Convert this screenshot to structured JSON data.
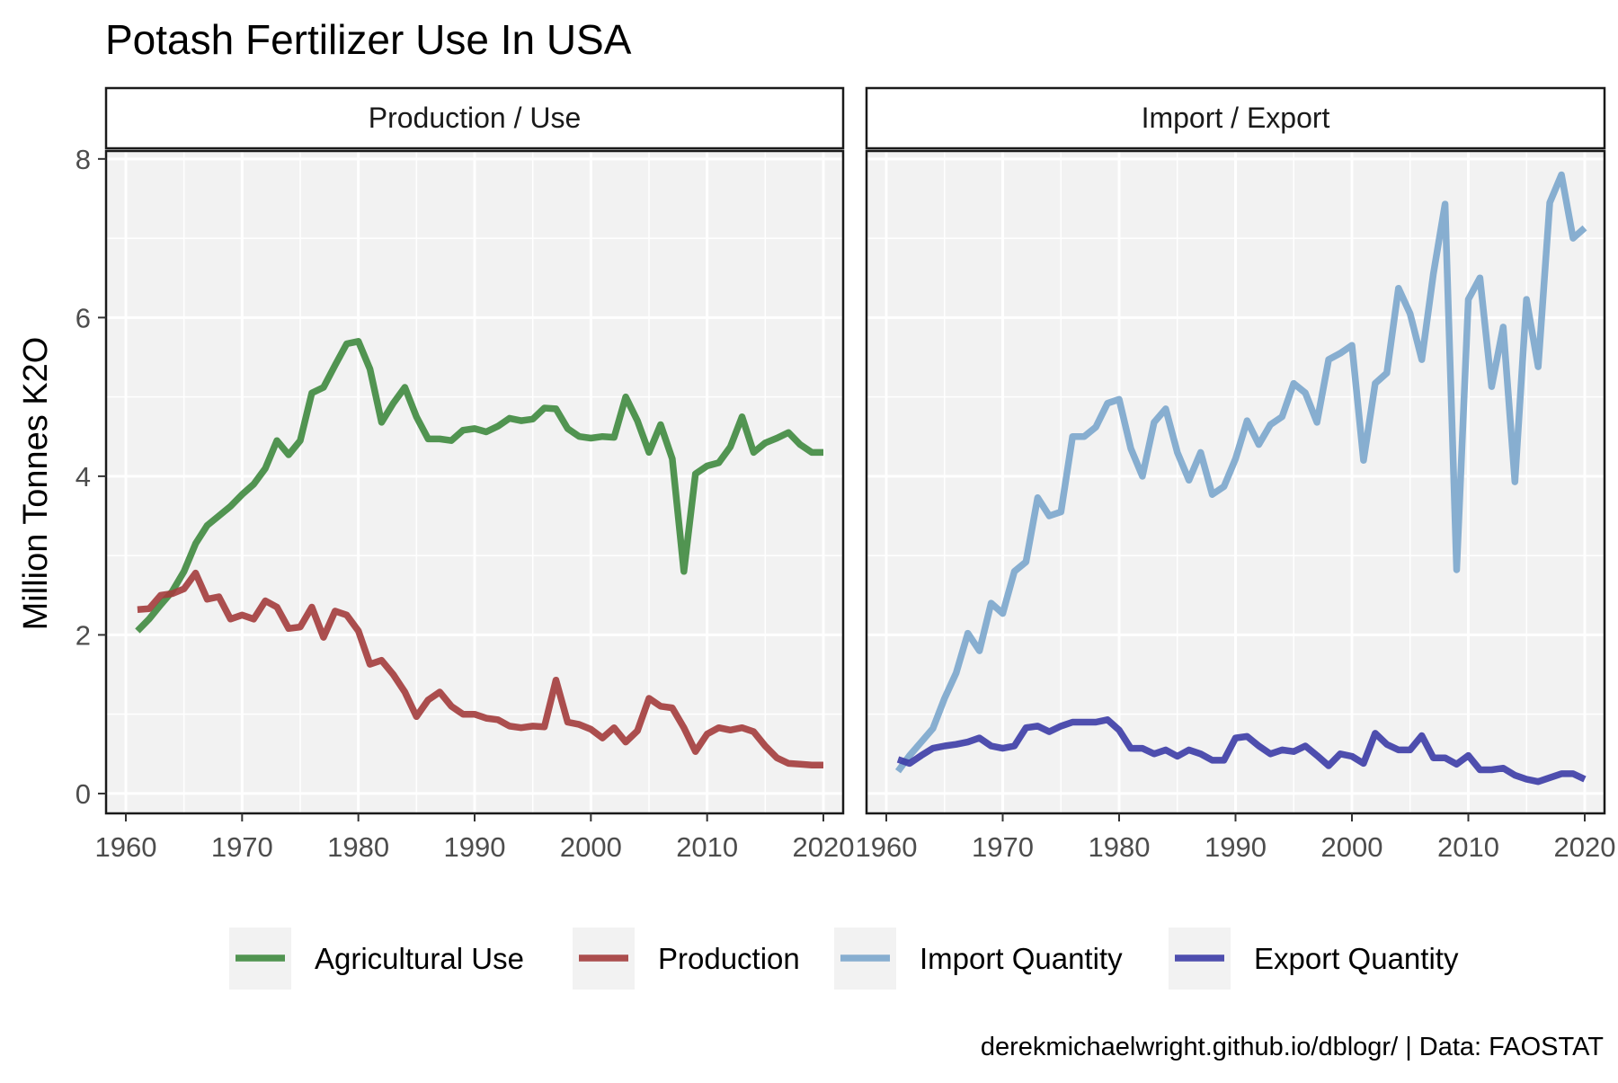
{
  "chart_data": {
    "type": "line",
    "title": "Potash Fertilizer Use In USA",
    "ylabel": "Million Tonnes K2O",
    "xlabel": "",
    "xlim": [
      1958.3,
      2021.7
    ],
    "ylim": [
      -0.25,
      8.1
    ],
    "x_ticks": [
      1960,
      1970,
      1980,
      1990,
      2000,
      2010,
      2020
    ],
    "x_tick_labels": [
      "1960",
      "1970",
      "1980",
      "1990",
      "2000",
      "2010",
      "2020"
    ],
    "y_ticks": [
      0,
      2,
      4,
      6,
      8
    ],
    "y_tick_labels": [
      "0",
      "2",
      "4",
      "6",
      "8"
    ],
    "grid": true,
    "legend_position": "bottom",
    "caption": "derekmichaelwright.github.io/dblogr/ | Data: FAOSTAT",
    "facets": [
      {
        "label": "Production / Use",
        "series": [
          {
            "name": "Agricultural Use",
            "color": "#3f8a3f",
            "x": [
              1961,
              1962,
              1963,
              1964,
              1965,
              1966,
              1967,
              1968,
              1969,
              1970,
              1971,
              1972,
              1973,
              1974,
              1975,
              1976,
              1977,
              1978,
              1979,
              1980,
              1981,
              1982,
              1983,
              1984,
              1985,
              1986,
              1987,
              1988,
              1989,
              1990,
              1991,
              1992,
              1993,
              1994,
              1995,
              1996,
              1997,
              1998,
              1999,
              2000,
              2001,
              2002,
              2003,
              2004,
              2005,
              2006,
              2007,
              2008,
              2009,
              2010,
              2011,
              2012,
              2013,
              2014,
              2015,
              2016,
              2017,
              2018,
              2019,
              2020
            ],
            "y": [
              2.05,
              2.2,
              2.38,
              2.55,
              2.8,
              3.15,
              3.38,
              3.5,
              3.62,
              3.77,
              3.9,
              4.1,
              4.45,
              4.27,
              4.45,
              5.05,
              5.12,
              5.4,
              5.67,
              5.7,
              5.35,
              4.68,
              4.92,
              5.12,
              4.75,
              4.47,
              4.47,
              4.45,
              4.58,
              4.6,
              4.56,
              4.63,
              4.73,
              4.7,
              4.72,
              4.86,
              4.85,
              4.6,
              4.5,
              4.48,
              4.5,
              4.49,
              5.0,
              4.7,
              4.3,
              4.65,
              4.22,
              2.8,
              4.03,
              4.13,
              4.17,
              4.37,
              4.75,
              4.3,
              4.42,
              4.48,
              4.55,
              4.4,
              4.3,
              4.3
            ]
          },
          {
            "name": "Production",
            "color": "#a33c3c",
            "x": [
              1961,
              1962,
              1963,
              1964,
              1965,
              1966,
              1967,
              1968,
              1969,
              1970,
              1971,
              1972,
              1973,
              1974,
              1975,
              1976,
              1977,
              1978,
              1979,
              1980,
              1981,
              1982,
              1983,
              1984,
              1985,
              1986,
              1987,
              1988,
              1989,
              1990,
              1991,
              1992,
              1993,
              1994,
              1995,
              1996,
              1997,
              1998,
              1999,
              2000,
              2001,
              2002,
              2003,
              2004,
              2005,
              2006,
              2007,
              2008,
              2009,
              2010,
              2011,
              2012,
              2013,
              2014,
              2015,
              2016,
              2017,
              2018,
              2019,
              2020
            ],
            "y": [
              2.32,
              2.33,
              2.5,
              2.52,
              2.58,
              2.78,
              2.45,
              2.48,
              2.2,
              2.25,
              2.2,
              2.43,
              2.35,
              2.08,
              2.1,
              2.35,
              1.97,
              2.3,
              2.25,
              2.05,
              1.63,
              1.68,
              1.5,
              1.28,
              0.97,
              1.18,
              1.28,
              1.1,
              1.0,
              1.0,
              0.95,
              0.93,
              0.85,
              0.83,
              0.85,
              0.84,
              1.43,
              0.9,
              0.87,
              0.81,
              0.7,
              0.83,
              0.65,
              0.79,
              1.2,
              1.1,
              1.08,
              0.83,
              0.53,
              0.75,
              0.83,
              0.8,
              0.83,
              0.78,
              0.6,
              0.45,
              0.38,
              0.37,
              0.36,
              0.36
            ]
          }
        ]
      },
      {
        "label": "Import / Export",
        "series": [
          {
            "name": "Import Quantity",
            "color": "#7ba6cc",
            "x": [
              1961,
              1962,
              1963,
              1964,
              1965,
              1966,
              1967,
              1968,
              1969,
              1970,
              1971,
              1972,
              1973,
              1974,
              1975,
              1976,
              1977,
              1978,
              1979,
              1980,
              1981,
              1982,
              1983,
              1984,
              1985,
              1986,
              1987,
              1988,
              1989,
              1990,
              1991,
              1992,
              1993,
              1994,
              1995,
              1996,
              1997,
              1998,
              1999,
              2000,
              2001,
              2002,
              2003,
              2004,
              2005,
              2006,
              2007,
              2008,
              2009,
              2010,
              2011,
              2012,
              2013,
              2014,
              2015,
              2016,
              2017,
              2018,
              2019,
              2020
            ],
            "y": [
              0.28,
              0.48,
              0.65,
              0.82,
              1.2,
              1.52,
              2.02,
              1.8,
              2.4,
              2.27,
              2.8,
              2.92,
              3.73,
              3.5,
              3.55,
              4.5,
              4.5,
              4.62,
              4.92,
              4.97,
              4.35,
              4.0,
              4.68,
              4.85,
              4.3,
              3.95,
              4.3,
              3.77,
              3.87,
              4.22,
              4.7,
              4.4,
              4.65,
              4.75,
              5.17,
              5.05,
              4.68,
              5.47,
              5.55,
              5.65,
              4.2,
              5.17,
              5.3,
              6.37,
              6.05,
              5.47,
              6.55,
              7.43,
              2.82,
              6.23,
              6.5,
              5.13,
              5.88,
              3.93,
              6.23,
              5.38,
              7.45,
              7.8,
              7.0,
              7.13
            ]
          },
          {
            "name": "Export Quantity",
            "color": "#3c3ca6",
            "x": [
              1961,
              1962,
              1963,
              1964,
              1965,
              1966,
              1967,
              1968,
              1969,
              1970,
              1971,
              1972,
              1973,
              1974,
              1975,
              1976,
              1977,
              1978,
              1979,
              1980,
              1981,
              1982,
              1983,
              1984,
              1985,
              1986,
              1987,
              1988,
              1989,
              1990,
              1991,
              1992,
              1993,
              1994,
              1995,
              1996,
              1997,
              1998,
              1999,
              2000,
              2001,
              2002,
              2003,
              2004,
              2005,
              2006,
              2007,
              2008,
              2009,
              2010,
              2011,
              2012,
              2013,
              2014,
              2015,
              2016,
              2017,
              2018,
              2019,
              2020
            ],
            "y": [
              0.43,
              0.38,
              0.48,
              0.57,
              0.6,
              0.62,
              0.65,
              0.7,
              0.6,
              0.57,
              0.6,
              0.83,
              0.85,
              0.78,
              0.85,
              0.9,
              0.9,
              0.9,
              0.93,
              0.8,
              0.57,
              0.57,
              0.5,
              0.55,
              0.47,
              0.55,
              0.5,
              0.42,
              0.42,
              0.7,
              0.72,
              0.6,
              0.5,
              0.55,
              0.53,
              0.6,
              0.48,
              0.35,
              0.5,
              0.47,
              0.38,
              0.76,
              0.62,
              0.55,
              0.55,
              0.73,
              0.45,
              0.45,
              0.37,
              0.48,
              0.3,
              0.3,
              0.32,
              0.23,
              0.18,
              0.15,
              0.2,
              0.25,
              0.25,
              0.18
            ]
          }
        ]
      }
    ]
  }
}
